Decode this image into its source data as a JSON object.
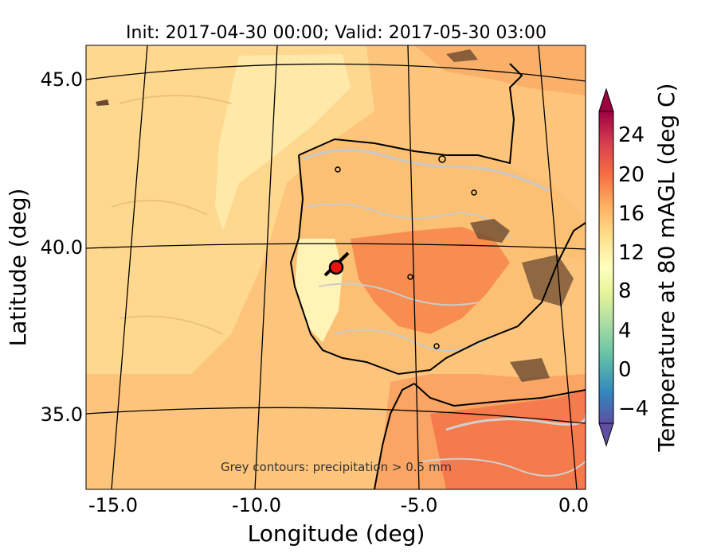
{
  "title": "Init: 2017-04-30 00:00; Valid: 2017-05-30 03:00",
  "xlabel": "Longitude (deg)",
  "ylabel": "Latitude (deg)",
  "x_ticks": [
    "-15.0",
    "-10.0",
    "-5.0",
    "0.0"
  ],
  "y_ticks": [
    "45.0",
    "40.0",
    "35.0"
  ],
  "annotation": "Grey contours: precipitation > 0.5 mm",
  "colorbar": {
    "label": "Temperature at 80 mAGL (deg C)",
    "ticks": [
      "24",
      "20",
      "16",
      "12",
      "8",
      "4",
      "0",
      "−4"
    ],
    "range": [
      -8,
      28
    ],
    "colors": [
      "#5e4fa2",
      "#3288bd",
      "#66c2a5",
      "#abdda4",
      "#e6f598",
      "#ffffbf",
      "#fee08b",
      "#fdae61",
      "#f46d43",
      "#d53e4f",
      "#9e0142"
    ]
  },
  "marker": {
    "lon": -7.6,
    "lat": 39.3,
    "color": "#ee1111"
  }
}
